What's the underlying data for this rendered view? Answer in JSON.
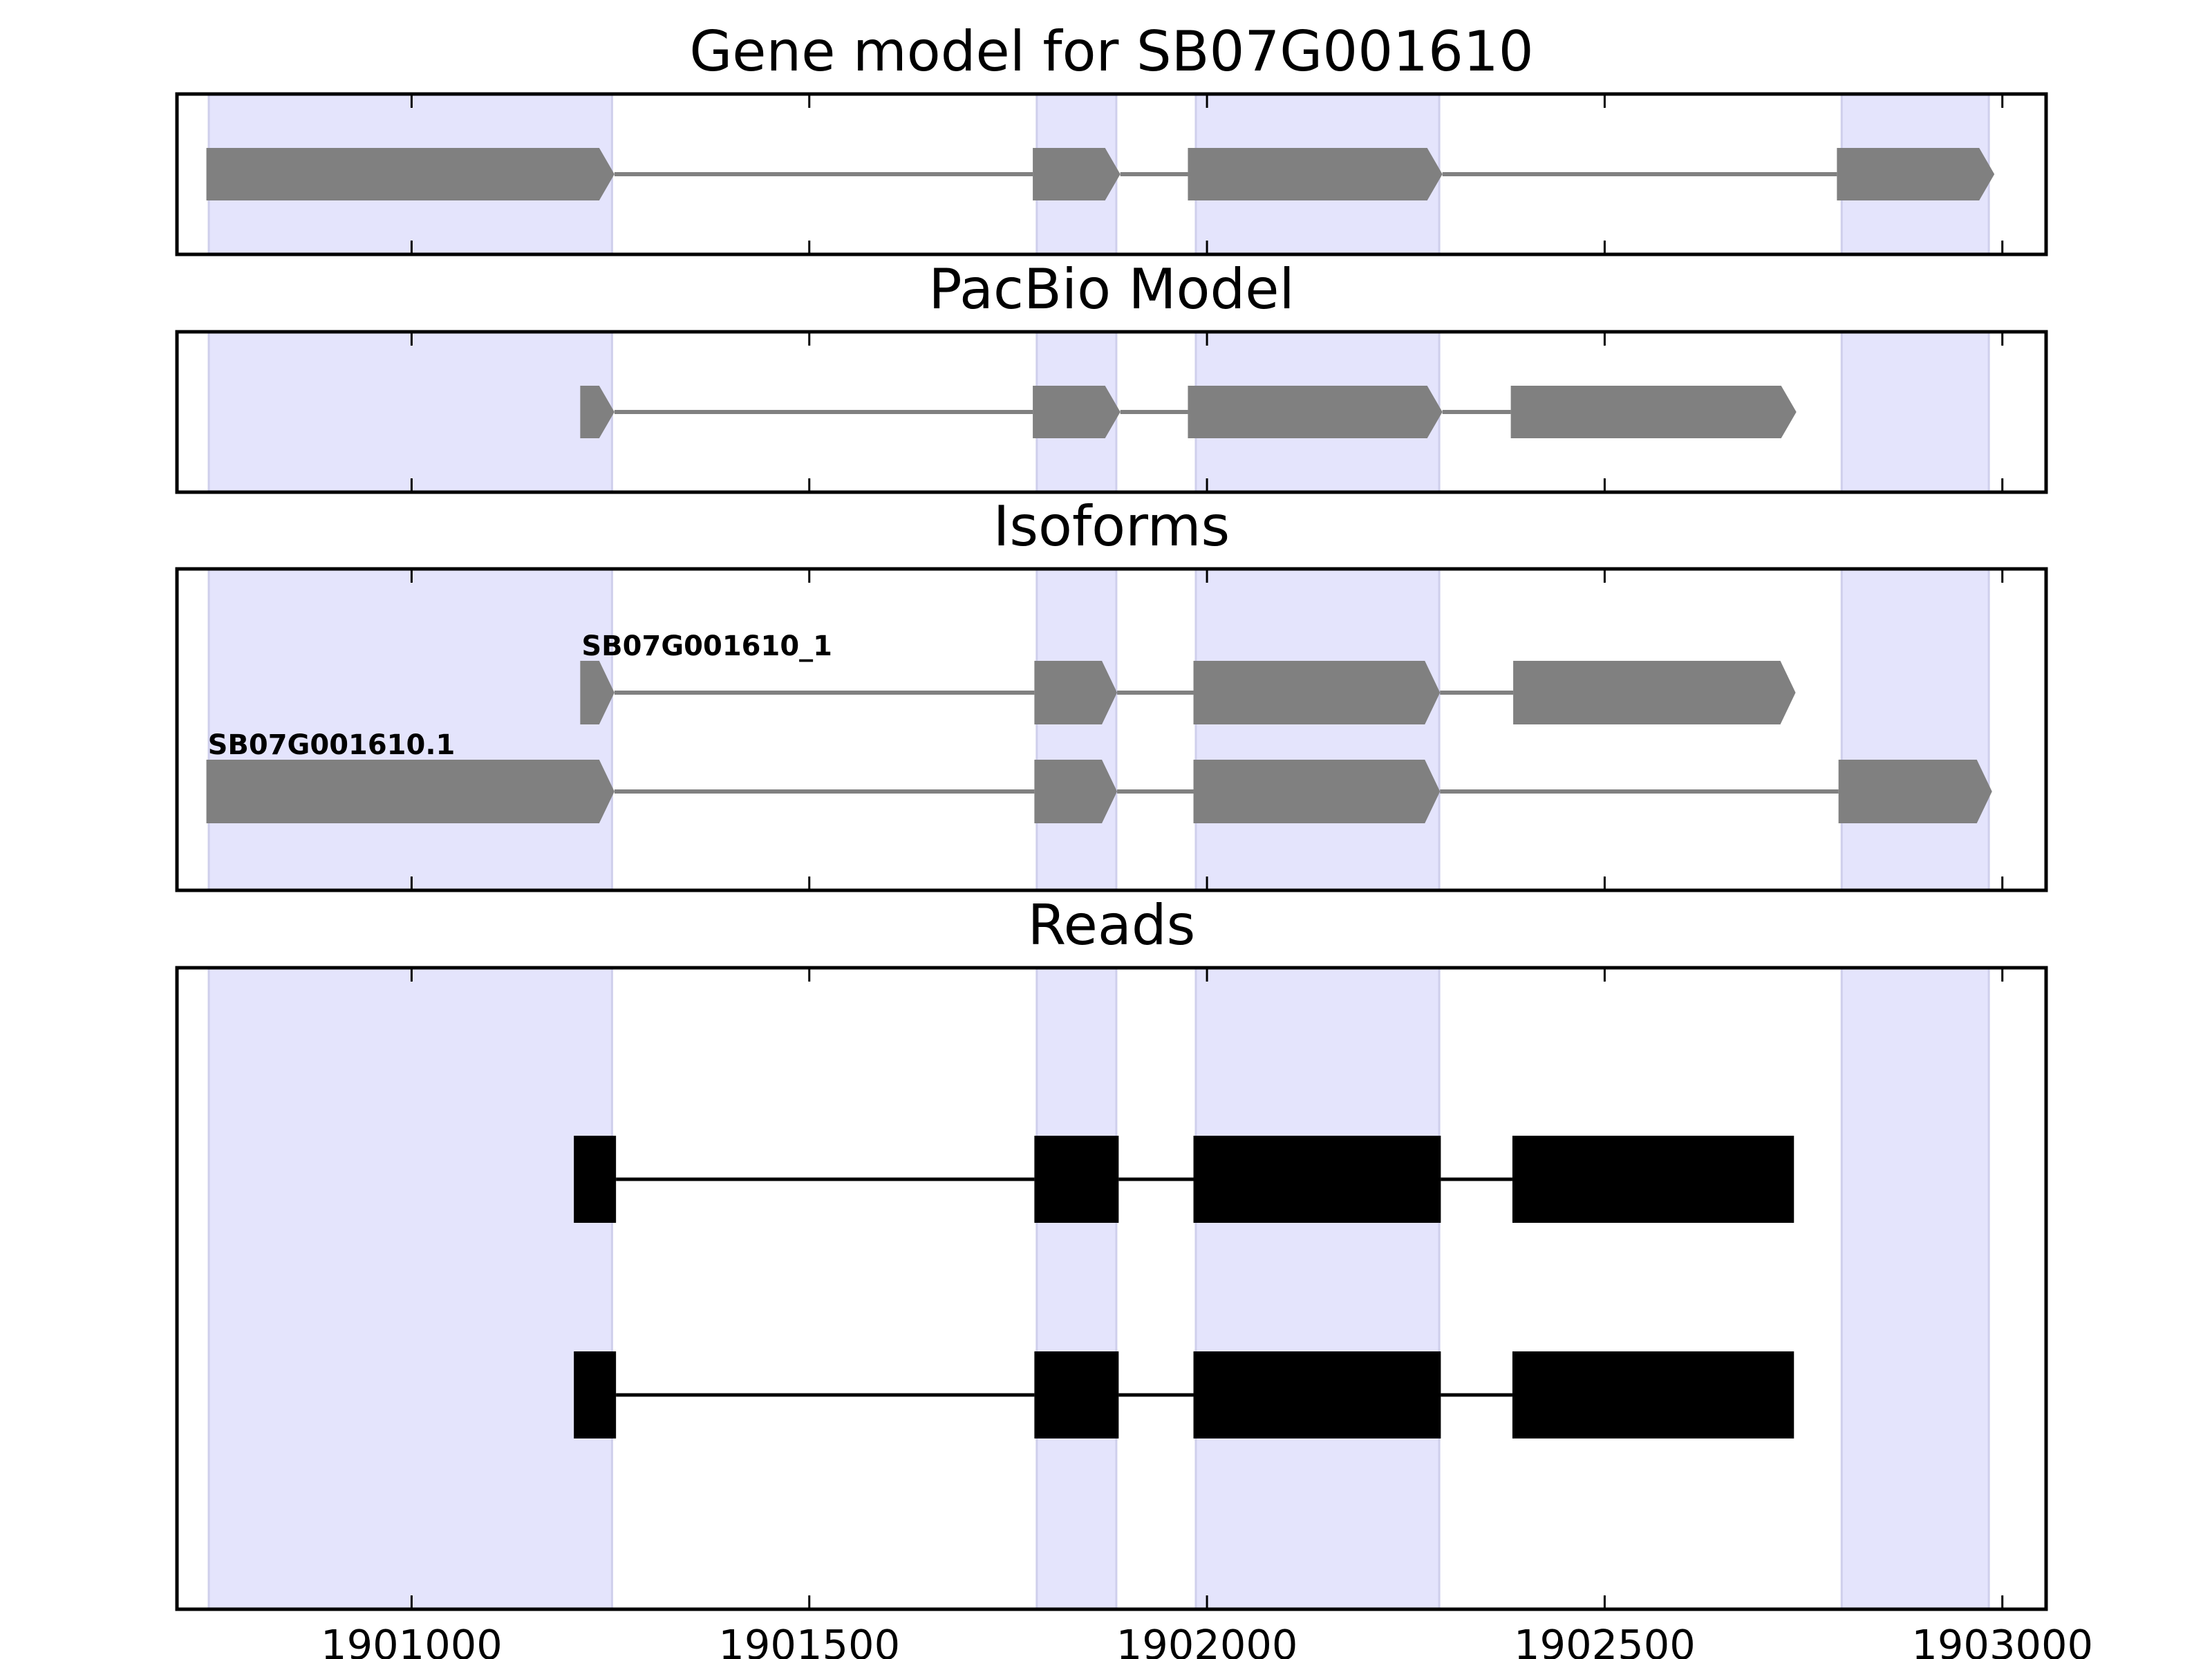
{
  "chart_data": {
    "type": "gene-structure",
    "x_axis": {
      "range": [
        1900705,
        1903055
      ],
      "ticks": [
        1901000,
        1901500,
        1902000,
        1902500,
        1903000
      ],
      "tick_labels": [
        "1901000",
        "1901500",
        "1902000",
        "1902500",
        "1903000"
      ]
    },
    "highlight_regions": [
      [
        1900745,
        1901252
      ],
      [
        1901786,
        1901886
      ],
      [
        1901986,
        1902292
      ],
      [
        1902798,
        1902983
      ]
    ],
    "colors": {
      "highlight": "#e4e4fc",
      "feature": "#808080",
      "read": "#000000",
      "frame": "#000000"
    },
    "panels": [
      {
        "title": "Gene model for SB07G001610",
        "tracks": [
          {
            "label": "",
            "exons": [
              [
                1900742,
                1901255
              ],
              [
                1901781,
                1901891
              ],
              [
                1901976,
                1902296
              ],
              [
                1902792,
                1902990
              ]
            ]
          }
        ]
      },
      {
        "title": "PacBio Model",
        "tracks": [
          {
            "label": "",
            "exons": [
              [
                1901212,
                1901255
              ],
              [
                1901781,
                1901891
              ],
              [
                1901976,
                1902296
              ],
              [
                1902382,
                1902741
              ]
            ]
          }
        ]
      },
      {
        "title": "Isoforms",
        "tracks": [
          {
            "label": "SB07G001610_1",
            "exons": [
              [
                1901212,
                1901255
              ],
              [
                1901783,
                1901887
              ],
              [
                1901983,
                1902293
              ],
              [
                1902385,
                1902740
              ]
            ]
          },
          {
            "label": "SB07G001610.1",
            "exons": [
              [
                1900742,
                1901255
              ],
              [
                1901783,
                1901887
              ],
              [
                1901983,
                1902293
              ],
              [
                1902794,
                1902987
              ]
            ]
          }
        ]
      },
      {
        "title": "Reads",
        "tracks": [
          {
            "label": "",
            "exons": [
              [
                1901204,
                1901257
              ],
              [
                1901783,
                1901889
              ],
              [
                1901983,
                1902294
              ],
              [
                1902384,
                1902738
              ]
            ]
          },
          {
            "label": "",
            "exons": [
              [
                1901204,
                1901257
              ],
              [
                1901783,
                1901889
              ],
              [
                1901983,
                1902294
              ],
              [
                1902384,
                1902738
              ]
            ]
          }
        ]
      }
    ]
  }
}
